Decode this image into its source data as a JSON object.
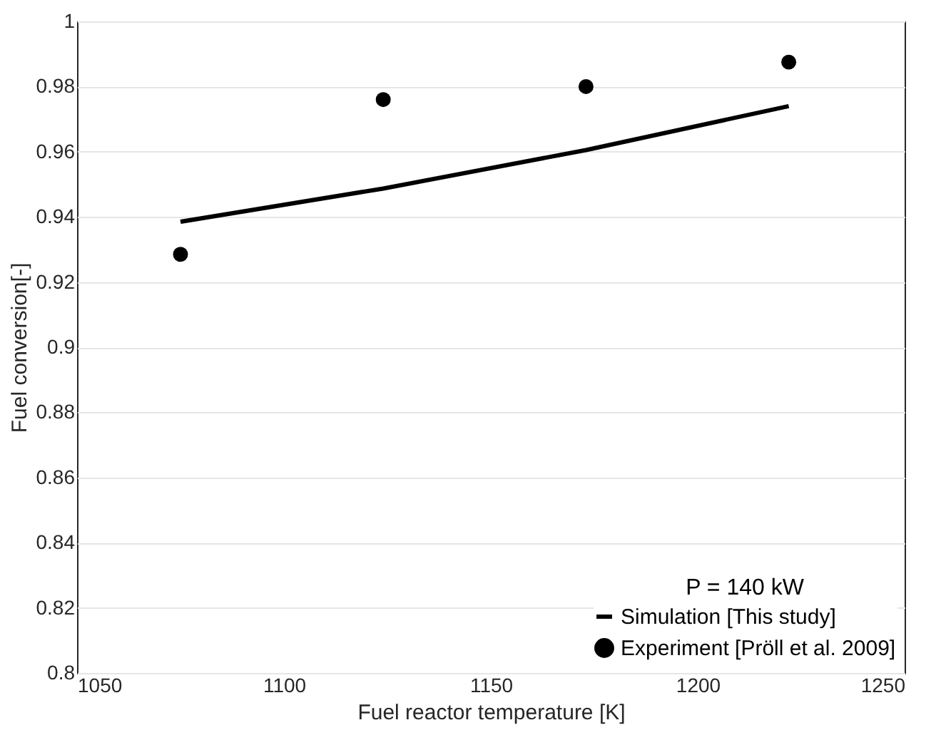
{
  "chart_data": {
    "type": "line",
    "xlabel": "Fuel reactor temperature [K]",
    "ylabel": "Fuel conversion[-]",
    "legend_title": "P = 140 kW",
    "legend": "bottom right",
    "grid": "y",
    "xlim": [
      1050,
      1250
    ],
    "xticks": [
      1050,
      1100,
      1150,
      1200,
      1250
    ],
    "ylim": [
      0.8,
      1
    ],
    "yticks": [
      0.8,
      0.82,
      0.84,
      0.86,
      0.88,
      0.9,
      0.92,
      0.94,
      0.96,
      0.98,
      1
    ],
    "x": [
      1075,
      1124,
      1173,
      1222
    ],
    "series": [
      {
        "name": "Simulation [This study]",
        "color": "#000000",
        "marker": "none",
        "values": [
          0.9385,
          0.9487,
          0.9605,
          0.974
        ]
      },
      {
        "name": "Experiment [Pröll et al. 2009]",
        "type": "scatter",
        "color": "#000000",
        "marker": "circle",
        "values": [
          0.9285,
          0.976,
          0.98,
          0.9875
        ]
      }
    ]
  }
}
